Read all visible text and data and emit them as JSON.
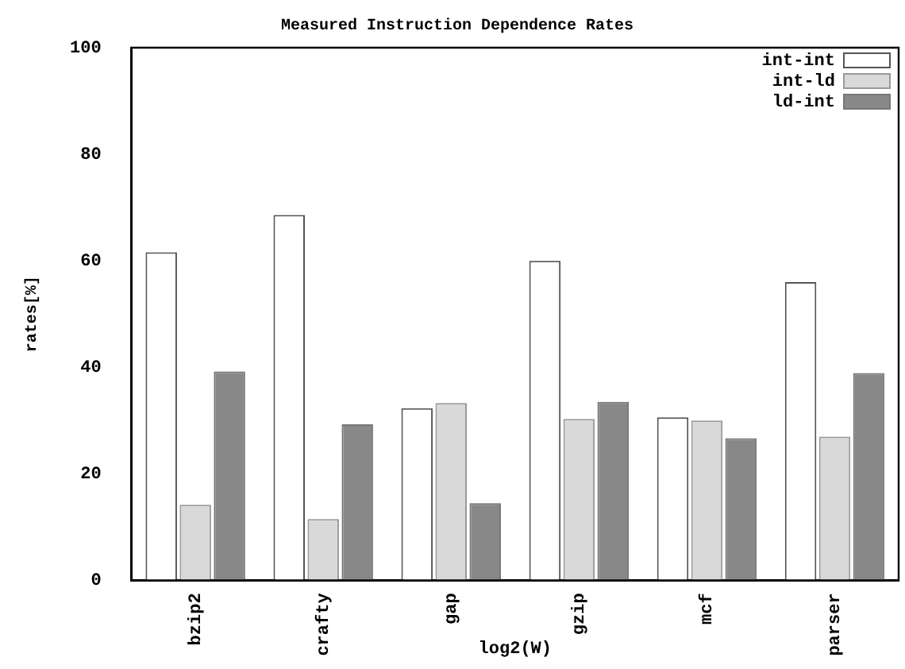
{
  "chart_data": {
    "type": "bar",
    "title": "Measured Instruction Dependence Rates",
    "xlabel": "log2(W)",
    "ylabel": "rates[%]",
    "categories": [
      "bzip2",
      "crafty",
      "gap",
      "gzip",
      "mcf",
      "parser"
    ],
    "series": [
      {
        "name": "int-int",
        "color": "#ffffff",
        "values": [
          61.6,
          68.6,
          32.3,
          60,
          30.6,
          56
        ]
      },
      {
        "name": "int-ld",
        "color": "#d9d9d9",
        "values": [
          14.2,
          11.5,
          33.3,
          30.3,
          30,
          27
        ]
      },
      {
        "name": "ld-int",
        "color": "#888888",
        "values": [
          39.2,
          29.3,
          14.5,
          33.5,
          26.7,
          38.9
        ]
      }
    ],
    "ylim": [
      0,
      100
    ],
    "yticks": [
      0,
      20,
      40,
      60,
      80,
      100
    ],
    "grid": false,
    "legend": "top right"
  }
}
